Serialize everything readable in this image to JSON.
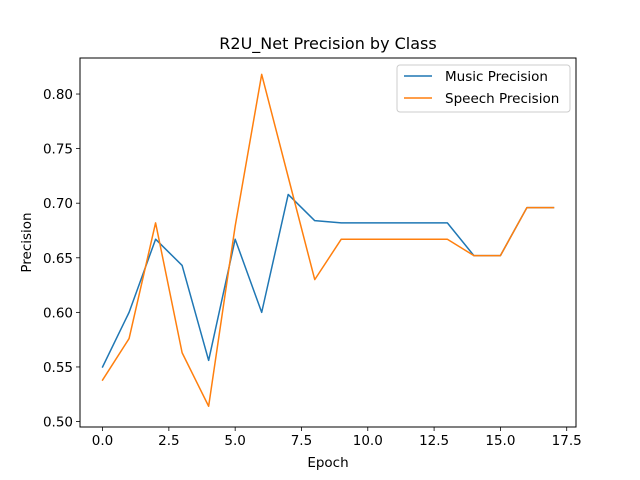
{
  "chart_data": {
    "type": "line",
    "title": "R2U_Net Precision by Class",
    "xlabel": "Epoch",
    "ylabel": "Precision",
    "xlim": [
      -0.85,
      17.85
    ],
    "ylim": [
      0.495,
      0.833
    ],
    "xticks": [
      0,
      2.5,
      5,
      7.5,
      10,
      12.5,
      15,
      17.5
    ],
    "xtick_labels": [
      "0.0",
      "2.5",
      "5.0",
      "7.5",
      "10.0",
      "12.5",
      "15.0",
      "17.5"
    ],
    "yticks": [
      0.5,
      0.55,
      0.6,
      0.65,
      0.7,
      0.75,
      0.8
    ],
    "ytick_labels": [
      "0.50",
      "0.55",
      "0.60",
      "0.65",
      "0.70",
      "0.75",
      "0.80"
    ],
    "x": [
      0,
      1,
      2,
      3,
      4,
      5,
      6,
      7,
      8,
      9,
      10,
      11,
      12,
      13,
      14,
      15,
      16,
      17
    ],
    "series": [
      {
        "name": "Music Precision",
        "color": "#1f77b4",
        "values": [
          0.55,
          0.6,
          0.667,
          0.643,
          0.556,
          0.667,
          0.6,
          0.708,
          0.684,
          0.682,
          0.682,
          0.682,
          0.682,
          0.682,
          0.652,
          0.652,
          0.696,
          0.696
        ]
      },
      {
        "name": "Speech Precision",
        "color": "#ff7f0e",
        "values": [
          0.538,
          0.576,
          0.682,
          0.563,
          0.514,
          0.679,
          0.818,
          0.724,
          0.63,
          0.667,
          0.667,
          0.667,
          0.667,
          0.667,
          0.652,
          0.652,
          0.696,
          0.696
        ]
      }
    ],
    "grid": false,
    "legend_position": "upper right"
  }
}
